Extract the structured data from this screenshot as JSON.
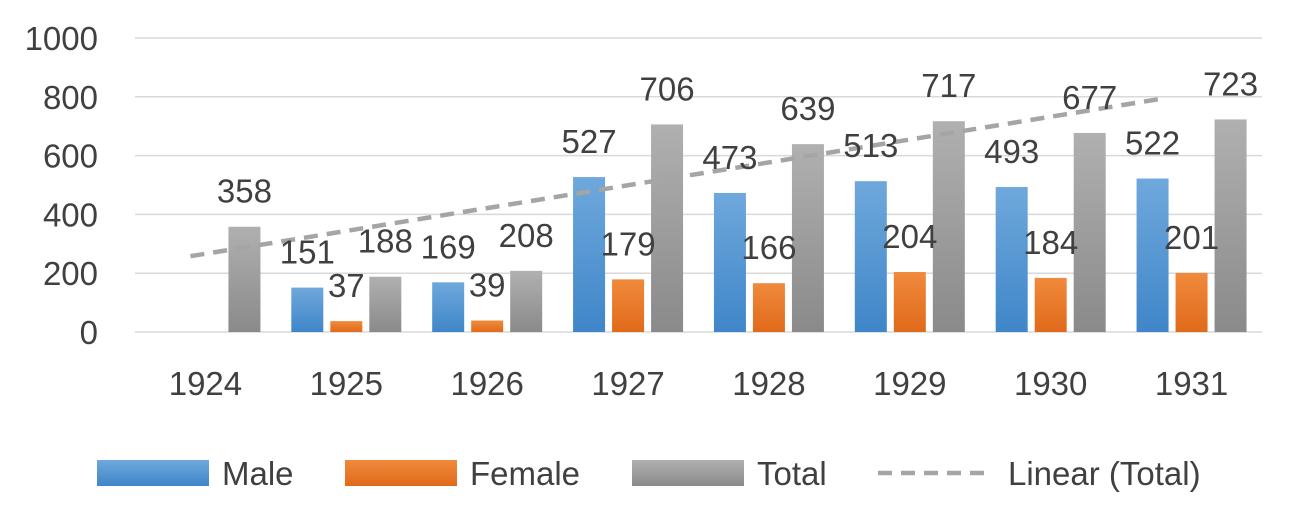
{
  "chart_data": {
    "type": "bar",
    "categories": [
      "1924",
      "1925",
      "1926",
      "1927",
      "1928",
      "1929",
      "1930",
      "1931"
    ],
    "series": [
      {
        "name": "Male",
        "values": [
          null,
          151,
          169,
          527,
          473,
          513,
          493,
          522
        ]
      },
      {
        "name": "Female",
        "values": [
          null,
          37,
          39,
          179,
          166,
          204,
          184,
          201
        ]
      },
      {
        "name": "Total",
        "values": [
          358,
          188,
          208,
          706,
          639,
          717,
          677,
          723
        ]
      }
    ],
    "trendline": {
      "name": "Linear (Total)",
      "of_series": "Total",
      "type": "linear",
      "style": "dashed"
    },
    "yticks": [
      "0",
      "200",
      "400",
      "600",
      "800",
      "1000"
    ],
    "ylim": [
      0,
      1000
    ],
    "grid": true,
    "legend": "bottom",
    "title": "",
    "xlabel": "",
    "ylabel": "",
    "colors": {
      "Male": "#5b9bd5",
      "Female": "#ed7d31",
      "Total": "#a5a5a5",
      "trend": "#a5a5a5",
      "grid": "#d9d9d9",
      "text": "#404040"
    }
  }
}
